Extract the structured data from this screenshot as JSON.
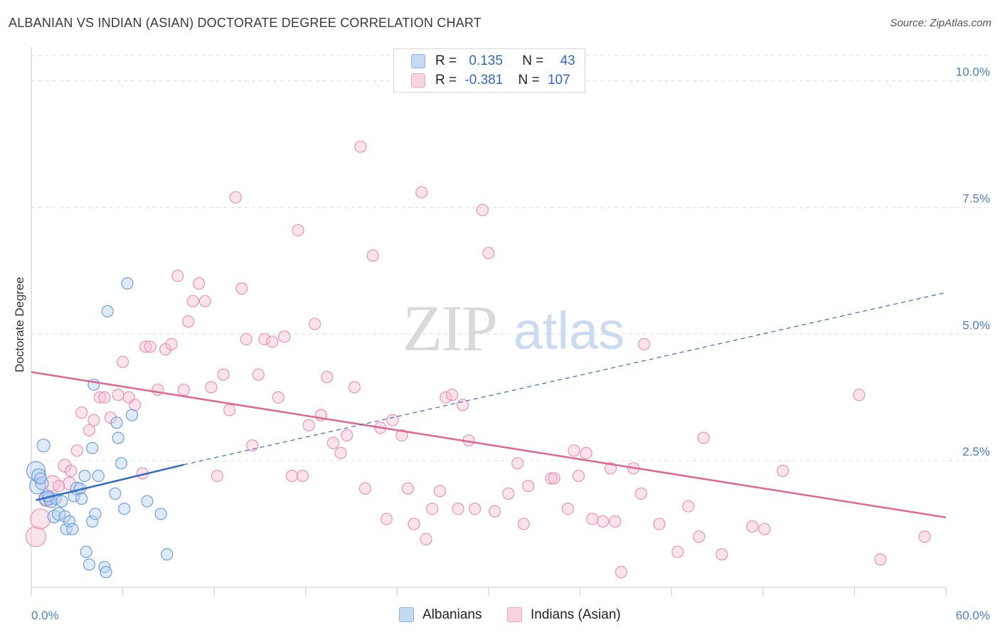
{
  "header": {
    "title": "ALBANIAN VS INDIAN (ASIAN) DOCTORATE DEGREE CORRELATION CHART",
    "source": "Source: ZipAtlas.com"
  },
  "watermark": {
    "zip": "ZIP",
    "atlas": "atlas"
  },
  "legend": {
    "rows": [
      {
        "r_label": "R =",
        "r_value": "0.135",
        "n_label": "N =",
        "n_value": "43",
        "color": "#8ab4e8"
      },
      {
        "r_label": "R =",
        "r_value": "-0.381",
        "n_label": "N =",
        "n_value": "107",
        "color": "#f2a3bd"
      }
    ]
  },
  "bottom_legend": [
    {
      "label": "Albanians",
      "color": "#8ab4e8"
    },
    {
      "label": "Indians (Asian)",
      "color": "#f2a3bd"
    }
  ],
  "chart_data": {
    "type": "scatter",
    "title": "ALBANIAN VS INDIAN (ASIAN) DOCTORATE DEGREE CORRELATION CHART",
    "xlabel": "",
    "ylabel": "Doctorate Degree",
    "xlim": [
      0,
      60
    ],
    "ylim": [
      0,
      10.5
    ],
    "x_tick_labels": [
      "0.0%",
      "60.0%"
    ],
    "y_ticks": [
      2.5,
      5.0,
      7.5,
      10.0
    ],
    "y_tick_labels": [
      "2.5%",
      "5.0%",
      "7.5%",
      "10.0%"
    ],
    "grid": true,
    "series": [
      {
        "name": "Albanians",
        "color": "#8ab4e8",
        "line_color": "#2f6bc3",
        "trend": {
          "x_solid": [
            0.3,
            10.0
          ],
          "y_solid": [
            1.72,
            2.42
          ],
          "x_dashed": [
            10.0,
            60.0
          ],
          "y_dashed": [
            2.42,
            5.82
          ]
        },
        "points": [
          [
            0.3,
            2.3,
            13
          ],
          [
            0.4,
            2.0,
            11
          ],
          [
            0.5,
            2.2,
            10
          ],
          [
            0.7,
            2.05,
            9
          ],
          [
            0.8,
            2.8,
            9
          ],
          [
            1.0,
            1.75,
            10
          ],
          [
            1.2,
            1.75,
            9
          ],
          [
            1.3,
            1.7,
            9
          ],
          [
            1.5,
            1.4,
            9
          ],
          [
            1.6,
            1.75,
            8
          ],
          [
            1.8,
            1.45,
            9
          ],
          [
            2.0,
            1.7,
            8
          ],
          [
            2.2,
            1.4,
            8
          ],
          [
            2.3,
            1.15,
            8
          ],
          [
            2.5,
            1.3,
            8
          ],
          [
            2.7,
            1.15,
            8
          ],
          [
            2.8,
            1.8,
            8
          ],
          [
            3.0,
            1.95,
            9
          ],
          [
            3.2,
            1.95,
            8
          ],
          [
            3.3,
            1.75,
            8
          ],
          [
            3.5,
            2.2,
            8
          ],
          [
            3.6,
            0.7,
            8
          ],
          [
            3.8,
            0.45,
            8
          ],
          [
            4.0,
            1.3,
            8
          ],
          [
            4.0,
            2.75,
            8
          ],
          [
            4.1,
            4.0,
            8
          ],
          [
            4.2,
            1.45,
            8
          ],
          [
            4.4,
            2.2,
            8
          ],
          [
            4.8,
            0.4,
            8
          ],
          [
            4.9,
            0.3,
            8
          ],
          [
            5.0,
            5.45,
            8
          ],
          [
            5.5,
            1.85,
            8
          ],
          [
            5.6,
            3.25,
            8
          ],
          [
            5.7,
            2.95,
            8
          ],
          [
            5.9,
            2.45,
            8
          ],
          [
            6.1,
            1.55,
            8
          ],
          [
            6.3,
            6.0,
            8
          ],
          [
            6.6,
            3.4,
            8
          ],
          [
            7.6,
            1.7,
            8
          ],
          [
            8.5,
            1.45,
            8
          ],
          [
            8.9,
            0.65,
            8
          ],
          [
            0.6,
            2.15,
            8
          ],
          [
            1.1,
            1.8,
            8
          ]
        ]
      },
      {
        "name": "Indians (Asian)",
        "color": "#f2a3bd",
        "line_color": "#e0668f",
        "trend": {
          "x": [
            0.0,
            60.0
          ],
          "y": [
            4.25,
            1.38
          ]
        },
        "points": [
          [
            0.3,
            1.0,
            14
          ],
          [
            0.6,
            1.35,
            14
          ],
          [
            1.0,
            1.75,
            11
          ],
          [
            1.4,
            2.05,
            11
          ],
          [
            2.2,
            2.4,
            9
          ],
          [
            2.5,
            2.05,
            9
          ],
          [
            2.6,
            2.3,
            8
          ],
          [
            3.0,
            2.7,
            8
          ],
          [
            3.3,
            3.45,
            8
          ],
          [
            3.8,
            3.1,
            8
          ],
          [
            4.1,
            3.3,
            8
          ],
          [
            4.5,
            3.75,
            8
          ],
          [
            4.8,
            3.75,
            8
          ],
          [
            5.2,
            3.35,
            8
          ],
          [
            5.7,
            3.8,
            8
          ],
          [
            6.0,
            4.45,
            8
          ],
          [
            6.4,
            3.75,
            8
          ],
          [
            6.8,
            3.6,
            8
          ],
          [
            7.3,
            2.25,
            8
          ],
          [
            7.5,
            4.75,
            8
          ],
          [
            7.8,
            4.75,
            8
          ],
          [
            8.3,
            3.9,
            8
          ],
          [
            8.8,
            4.7,
            8
          ],
          [
            9.2,
            4.8,
            8
          ],
          [
            9.6,
            6.15,
            8
          ],
          [
            10.0,
            3.9,
            8
          ],
          [
            10.3,
            5.25,
            8
          ],
          [
            10.6,
            5.65,
            8
          ],
          [
            11.0,
            6.0,
            8
          ],
          [
            11.4,
            5.65,
            8
          ],
          [
            11.8,
            3.95,
            8
          ],
          [
            12.2,
            2.2,
            8
          ],
          [
            12.6,
            4.2,
            8
          ],
          [
            13.0,
            3.5,
            8
          ],
          [
            13.4,
            7.7,
            8
          ],
          [
            13.8,
            5.9,
            8
          ],
          [
            14.1,
            4.9,
            8
          ],
          [
            14.5,
            2.8,
            8
          ],
          [
            14.9,
            4.2,
            8
          ],
          [
            15.3,
            4.9,
            8
          ],
          [
            15.8,
            4.85,
            8
          ],
          [
            16.2,
            3.75,
            8
          ],
          [
            16.6,
            4.95,
            8
          ],
          [
            17.1,
            2.2,
            8
          ],
          [
            17.5,
            7.05,
            8
          ],
          [
            17.8,
            2.2,
            8
          ],
          [
            18.2,
            3.2,
            8
          ],
          [
            18.6,
            5.2,
            8
          ],
          [
            19.0,
            3.4,
            8
          ],
          [
            19.4,
            4.15,
            8
          ],
          [
            19.8,
            2.85,
            8
          ],
          [
            20.3,
            2.65,
            8
          ],
          [
            20.7,
            3.0,
            8
          ],
          [
            21.2,
            3.95,
            8
          ],
          [
            21.6,
            8.7,
            8
          ],
          [
            21.9,
            1.95,
            8
          ],
          [
            22.4,
            6.55,
            8
          ],
          [
            22.9,
            3.15,
            8
          ],
          [
            23.3,
            1.35,
            8
          ],
          [
            23.7,
            3.3,
            8
          ],
          [
            24.3,
            3.0,
            8
          ],
          [
            24.7,
            1.95,
            8
          ],
          [
            25.1,
            1.25,
            8
          ],
          [
            25.6,
            7.8,
            8
          ],
          [
            25.9,
            0.95,
            8
          ],
          [
            26.3,
            1.55,
            8
          ],
          [
            26.8,
            1.9,
            8
          ],
          [
            27.2,
            3.75,
            8
          ],
          [
            27.6,
            3.8,
            8
          ],
          [
            28.0,
            1.55,
            8
          ],
          [
            28.3,
            3.6,
            8
          ],
          [
            28.7,
            2.9,
            8
          ],
          [
            29.1,
            1.55,
            8
          ],
          [
            29.6,
            7.45,
            8
          ],
          [
            30.0,
            6.6,
            8
          ],
          [
            30.4,
            1.5,
            8
          ],
          [
            31.3,
            1.85,
            8
          ],
          [
            31.9,
            2.45,
            8
          ],
          [
            32.3,
            1.25,
            8
          ],
          [
            32.6,
            2.0,
            8
          ],
          [
            34.1,
            2.15,
            8
          ],
          [
            34.3,
            2.15,
            8
          ],
          [
            35.2,
            1.55,
            8
          ],
          [
            35.6,
            2.7,
            8
          ],
          [
            35.9,
            2.2,
            8
          ],
          [
            36.4,
            2.65,
            8
          ],
          [
            36.8,
            1.35,
            8
          ],
          [
            37.5,
            1.3,
            8
          ],
          [
            38.0,
            2.35,
            8
          ],
          [
            38.3,
            1.3,
            8
          ],
          [
            38.7,
            0.3,
            8
          ],
          [
            39.5,
            2.35,
            8
          ],
          [
            40.0,
            1.85,
            8
          ],
          [
            40.2,
            4.8,
            8
          ],
          [
            41.2,
            1.25,
            8
          ],
          [
            42.4,
            0.7,
            8
          ],
          [
            43.1,
            1.6,
            8
          ],
          [
            43.8,
            1.0,
            8
          ],
          [
            44.1,
            2.95,
            8
          ],
          [
            45.3,
            0.65,
            8
          ],
          [
            47.3,
            1.2,
            8
          ],
          [
            48.1,
            1.15,
            8
          ],
          [
            49.3,
            2.3,
            8
          ],
          [
            54.3,
            3.8,
            8
          ],
          [
            55.7,
            0.55,
            8
          ],
          [
            58.6,
            1.0,
            8
          ],
          [
            1.8,
            2.0,
            8
          ]
        ]
      }
    ]
  }
}
